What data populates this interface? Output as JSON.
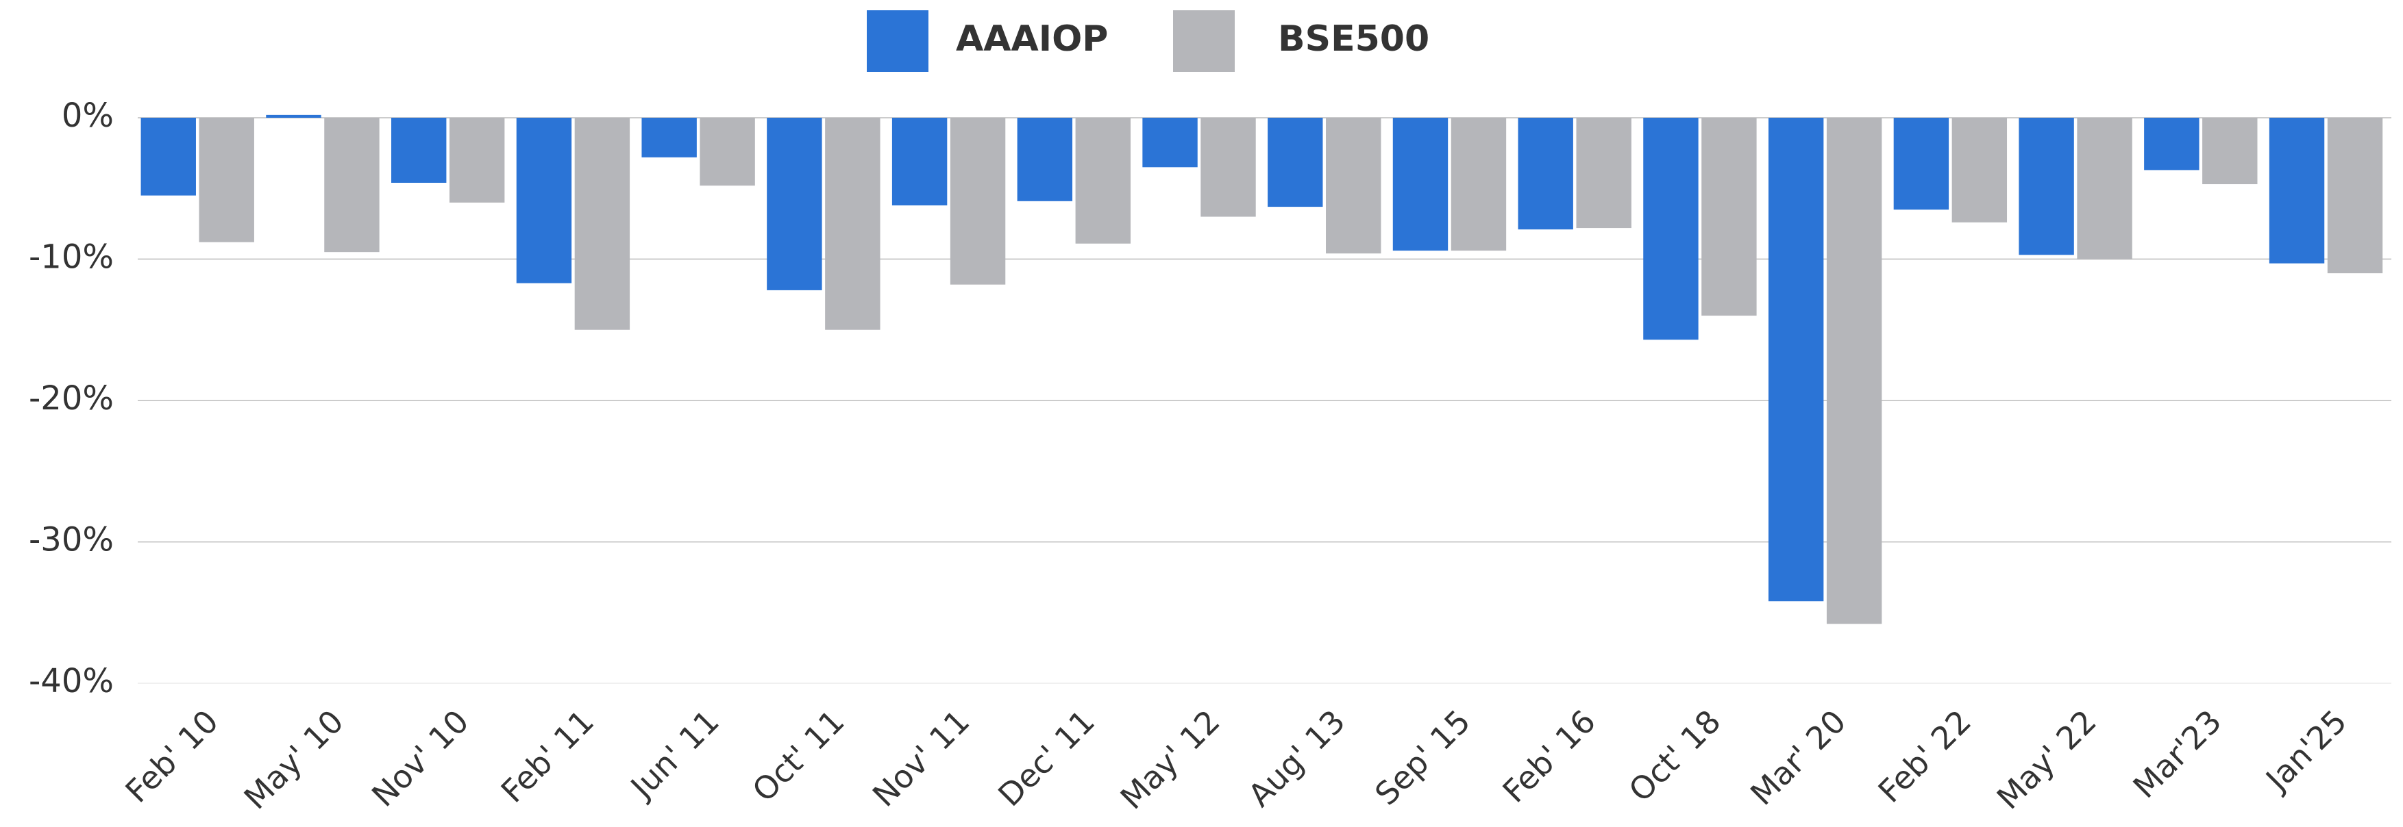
{
  "chart_data": {
    "type": "bar",
    "categories": [
      "Feb' 10",
      "May' 10",
      "Nov' 10",
      "Feb' 11",
      "Jun' 11",
      "Oct' 11",
      "Nov' 11",
      "Dec' 11",
      "May' 12",
      "Aug' 13",
      "Sep' 15",
      "Feb' 16",
      "Oct' 18",
      "Mar' 20",
      "Feb' 22",
      "May' 22",
      "Mar'23",
      "Jan'25"
    ],
    "series": [
      {
        "name": "AAAIOP",
        "color": "#2b74d6",
        "values": [
          -5.5,
          0.2,
          -4.6,
          -11.7,
          -2.8,
          -12.2,
          -6.2,
          -5.9,
          -3.5,
          -6.3,
          -9.4,
          -7.9,
          -15.7,
          -34.2,
          -6.5,
          -9.7,
          -3.7,
          -10.3
        ]
      },
      {
        "name": "BSE500",
        "color": "#b5b6ba",
        "values": [
          -8.8,
          -9.5,
          -6.0,
          -15.0,
          -4.8,
          -15.0,
          -11.8,
          -8.9,
          -7.0,
          -9.6,
          -9.4,
          -7.8,
          -14.0,
          -35.8,
          -7.4,
          -10.0,
          -4.7,
          -11.0
        ]
      }
    ],
    "ylim": [
      -40,
      0
    ],
    "yticks": [
      {
        "value": 0,
        "label": "0%"
      },
      {
        "value": -10,
        "label": "-10%"
      },
      {
        "value": -20,
        "label": "-20%"
      },
      {
        "value": -30,
        "label": "-30%"
      },
      {
        "value": -40,
        "label": "-40%"
      }
    ],
    "grid": true,
    "legend": "top"
  }
}
